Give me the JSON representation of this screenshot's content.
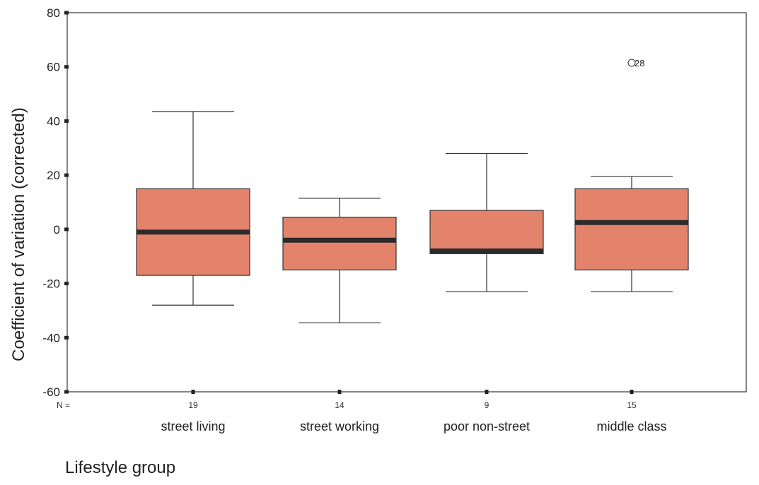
{
  "chart_data": {
    "type": "boxplot",
    "xlabel": "Lifestyle group",
    "ylabel": "Coefficient of variation (corrected)",
    "ylim": [
      -60,
      80
    ],
    "yticks": [
      80,
      60,
      40,
      20,
      0,
      -20,
      -40,
      -60
    ],
    "ytick_labels": [
      "80",
      "60",
      "40",
      "20",
      "0",
      "-20",
      "-40",
      "-60"
    ],
    "n_prefix": "N =",
    "grid": false,
    "box_color": "#e4836b",
    "median_color": "#2b2b2b",
    "categories": [
      "street living",
      "street working",
      "poor non-street",
      "middle class"
    ],
    "n_labels": [
      "19",
      "14",
      "9",
      "15"
    ],
    "boxes": [
      {
        "whisker_low": -28,
        "q1": -17,
        "median": -1,
        "q3": 15,
        "whisker_high": 43.5,
        "outliers": []
      },
      {
        "whisker_low": -34.5,
        "q1": -15,
        "median": -4,
        "q3": 4.5,
        "whisker_high": 11.5,
        "outliers": []
      },
      {
        "whisker_low": -23,
        "q1": -9,
        "median": -8,
        "q3": 7,
        "whisker_high": 28,
        "outliers": []
      },
      {
        "whisker_low": -23,
        "q1": -15,
        "median": 2.5,
        "q3": 15,
        "whisker_high": 19.5,
        "outliers": [
          {
            "value": 61.5,
            "label": "28"
          }
        ]
      }
    ]
  }
}
